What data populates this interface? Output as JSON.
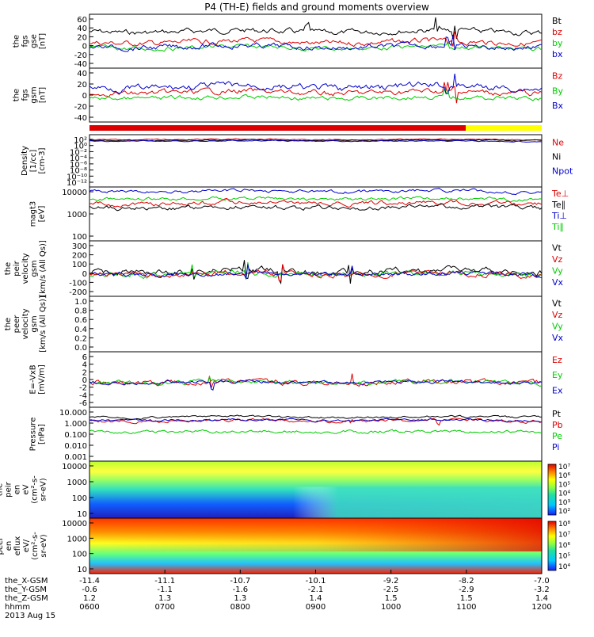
{
  "title": "P4 (TH-E) fields and ground moments overview",
  "panels": [
    {
      "id": "fgs_gse",
      "ylabel": [
        "the",
        "fgs",
        "gse",
        "[nT]"
      ],
      "yticks": [
        "60",
        "40",
        "20",
        "0",
        "-20",
        "-40"
      ],
      "legend": [
        {
          "t": "Bt",
          "c": "#000000"
        },
        {
          "t": "bz",
          "c": "#dd0000"
        },
        {
          "t": "by",
          "c": "#00cc00"
        },
        {
          "t": "bx",
          "c": "#0000cc"
        }
      ]
    },
    {
      "id": "fgs_gsm",
      "ylabel": [
        "the",
        "fgs",
        "gsm",
        "[nT]"
      ],
      "yticks": [
        "40",
        "20",
        "0",
        "-20",
        "-40"
      ],
      "legend": [
        {
          "t": "Bz",
          "c": "#dd0000"
        },
        {
          "t": "By",
          "c": "#00cc00"
        },
        {
          "t": "Bx",
          "c": "#0000cc"
        }
      ]
    },
    {
      "id": "density",
      "ylabel": [
        "Density",
        "[1/cc]",
        "[cm-3]"
      ],
      "yticks": [
        "10²",
        "10⁰",
        "10⁻²",
        "10⁻⁴",
        "10⁻⁶",
        "10⁻⁸",
        "10⁻¹⁰",
        "10⁻¹²"
      ],
      "legend": [
        {
          "t": "Ne",
          "c": "#dd0000"
        },
        {
          "t": "Ni",
          "c": "#000000"
        },
        {
          "t": "Npot",
          "c": "#0000cc"
        }
      ]
    },
    {
      "id": "temperature",
      "ylabel": [
        "magt3",
        "[eV]"
      ],
      "yticks": [
        "10000",
        "1000",
        "100"
      ],
      "legend": [
        {
          "t": "Te⊥",
          "c": "#dd0000"
        },
        {
          "t": "Te∥",
          "c": "#000000"
        },
        {
          "t": "Ti⊥",
          "c": "#0000cc"
        },
        {
          "t": "Ti∥",
          "c": "#00cc00"
        }
      ]
    },
    {
      "id": "peir_velocity",
      "ylabel": [
        "the",
        "peir",
        "velocity",
        "gsm",
        "[km/s (All Qs)]"
      ],
      "yticks": [
        "300",
        "200",
        "100",
        "0",
        "-100",
        "-200"
      ],
      "legend": [
        {
          "t": "Vt",
          "c": "#000000"
        },
        {
          "t": "Vz",
          "c": "#dd0000"
        },
        {
          "t": "Vy",
          "c": "#00cc00"
        },
        {
          "t": "Vx",
          "c": "#0000cc"
        }
      ]
    },
    {
      "id": "peer_velocity",
      "ylabel": [
        "the",
        "peer",
        "velocity",
        "gsm",
        "[km/s (All Qs)]"
      ],
      "yticks": [
        "1.0",
        "0.8",
        "0.6",
        "0.4",
        "0.2",
        "0.0"
      ],
      "legend": [
        {
          "t": "Vt",
          "c": "#000000"
        },
        {
          "t": "Vz",
          "c": "#dd0000"
        },
        {
          "t": "Vy",
          "c": "#00cc00"
        },
        {
          "t": "Vx",
          "c": "#0000cc"
        }
      ]
    },
    {
      "id": "efield",
      "ylabel": [
        "E=-VxB",
        "[mV/m]"
      ],
      "yticks": [
        "6",
        "4",
        "2",
        "0",
        "-2",
        "-4",
        "-6"
      ],
      "legend": [
        {
          "t": "Ez",
          "c": "#dd0000"
        },
        {
          "t": "Ey",
          "c": "#00cc00"
        },
        {
          "t": "Ex",
          "c": "#0000cc"
        }
      ]
    },
    {
      "id": "pressure",
      "ylabel": [
        "Pressure",
        "[nPa]"
      ],
      "yticks": [
        "10.000",
        "1.000",
        "0.100",
        "0.010",
        "0.001"
      ],
      "legend": [
        {
          "t": "Pt",
          "c": "#000000"
        },
        {
          "t": "Pb",
          "c": "#dd0000"
        },
        {
          "t": "Pe",
          "c": "#00cc00"
        },
        {
          "t": "Pi",
          "c": "#0000cc"
        }
      ]
    },
    {
      "id": "peir_spec",
      "ylabel": [
        "the",
        "peir",
        "en",
        "eV",
        "(cm²-s-",
        "sr-eV)"
      ],
      "yticks": [
        "10000",
        "1000",
        "100",
        "10"
      ],
      "cbar": [
        "10⁷",
        "10⁶",
        "10⁵",
        "10⁴",
        "10³",
        "10²"
      ]
    },
    {
      "id": "peer_spec",
      "ylabel": [
        "the",
        "peer",
        "en",
        "eflux",
        "eV/",
        "(cm²-s-",
        "sr-eV)"
      ],
      "yticks": [
        "10000",
        "1000",
        "100",
        "10"
      ],
      "cbar": [
        "10⁸",
        "10⁷",
        "10⁶",
        "10⁵",
        "10⁴"
      ]
    }
  ],
  "xaxis": {
    "row_labels": [
      "the_X-GSM",
      "the_Y-GSM",
      "the_Z-GSM",
      "hhmm"
    ],
    "date": "2013 Aug 15",
    "columns": [
      [
        "-11.4",
        "-0.6",
        "1.2",
        "0600"
      ],
      [
        "-11.1",
        "-1.1",
        "1.3",
        "0700"
      ],
      [
        "-10.7",
        "-1.6",
        "1.3",
        "0800"
      ],
      [
        "-10.1",
        "-2.1",
        "1.4",
        "0900"
      ],
      [
        "-9.2",
        "-2.5",
        "1.5",
        "1000"
      ],
      [
        "-8.2",
        "-2.9",
        "1.5",
        "1100"
      ],
      [
        "-7.0",
        "-3.2",
        "1.4",
        "1200"
      ]
    ]
  },
  "colors": {
    "axis": "#000000",
    "red": "#dd0000",
    "green": "#00cc00",
    "blue": "#0000cc",
    "yellow": "#ffff00"
  }
}
